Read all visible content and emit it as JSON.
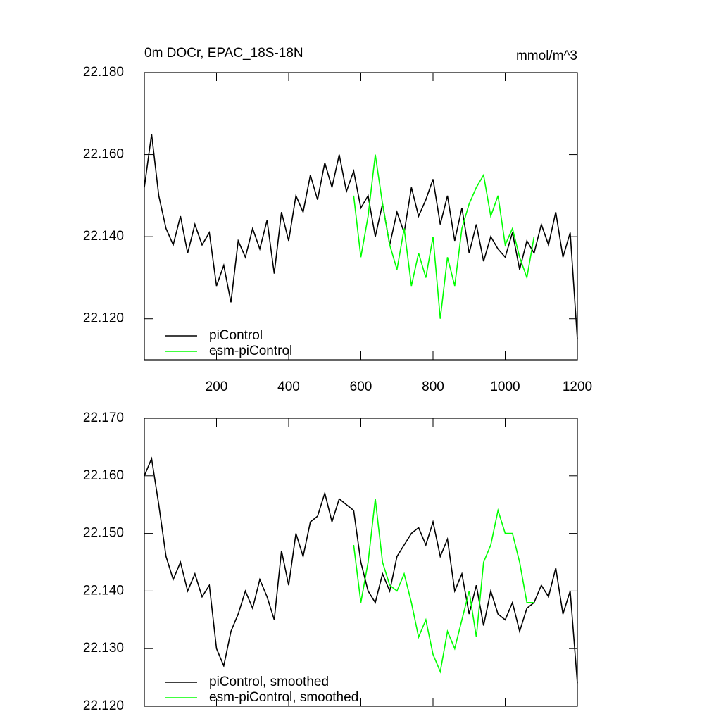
{
  "chart_data": [
    {
      "type": "line",
      "title": "0m DOCr, EPAC_18S-18N",
      "y_units": "mmol/m^3",
      "xlim": [
        0,
        1200
      ],
      "xticks": [
        200,
        400,
        600,
        800,
        1000,
        1200
      ],
      "xtick_labels": true,
      "ylim": [
        22.11,
        22.18
      ],
      "yticks": [
        {
          "value": 22.18,
          "label": "22.180"
        },
        {
          "value": 22.16,
          "label": "22.160"
        },
        {
          "value": 22.14,
          "label": "22.140"
        },
        {
          "value": 22.12,
          "label": "22.120"
        }
      ],
      "legend_loc": "lower left",
      "series": [
        {
          "name": "piControl",
          "color": "#000000",
          "x": [
            0,
            20,
            40,
            60,
            80,
            100,
            120,
            140,
            160,
            180,
            200,
            220,
            240,
            260,
            280,
            300,
            320,
            340,
            360,
            380,
            400,
            420,
            440,
            460,
            480,
            500,
            520,
            540,
            560,
            580,
            600,
            620,
            640,
            660,
            680,
            700,
            720,
            740,
            760,
            780,
            800,
            820,
            840,
            860,
            880,
            900,
            920,
            940,
            960,
            980,
            1000,
            1020,
            1040,
            1060,
            1080,
            1100,
            1120,
            1140,
            1160,
            1180,
            1200
          ],
          "values": [
            22.152,
            22.165,
            22.15,
            22.142,
            22.138,
            22.145,
            22.136,
            22.143,
            22.138,
            22.141,
            22.128,
            22.133,
            22.124,
            22.139,
            22.135,
            22.142,
            22.137,
            22.144,
            22.131,
            22.146,
            22.139,
            22.15,
            22.146,
            22.155,
            22.149,
            22.158,
            22.152,
            22.16,
            22.151,
            22.156,
            22.147,
            22.15,
            22.14,
            22.148,
            22.138,
            22.146,
            22.141,
            22.152,
            22.145,
            22.149,
            22.154,
            22.143,
            22.15,
            22.139,
            22.147,
            22.136,
            22.143,
            22.134,
            22.14,
            22.137,
            22.135,
            22.141,
            22.132,
            22.139,
            22.136,
            22.143,
            22.138,
            22.146,
            22.135,
            22.141,
            22.115
          ]
        },
        {
          "name": "esm-piControl",
          "color": "#00ff00",
          "x": [
            580,
            600,
            620,
            640,
            660,
            680,
            700,
            720,
            740,
            760,
            780,
            800,
            820,
            840,
            860,
            880,
            900,
            920,
            940,
            960,
            980,
            1000,
            1020,
            1040,
            1060,
            1080
          ],
          "values": [
            22.15,
            22.135,
            22.145,
            22.16,
            22.148,
            22.138,
            22.132,
            22.142,
            22.128,
            22.136,
            22.13,
            22.14,
            22.12,
            22.135,
            22.128,
            22.142,
            22.148,
            22.152,
            22.155,
            22.145,
            22.15,
            22.138,
            22.142,
            22.135,
            22.13,
            22.14
          ]
        }
      ]
    },
    {
      "type": "line",
      "xlim": [
        0,
        1200
      ],
      "xticks": [
        200,
        400,
        600,
        800,
        1000,
        1200
      ],
      "xtick_labels": false,
      "ylim": [
        22.12,
        22.17
      ],
      "yticks": [
        {
          "value": 22.17,
          "label": "22.170"
        },
        {
          "value": 22.16,
          "label": "22.160"
        },
        {
          "value": 22.15,
          "label": "22.150"
        },
        {
          "value": 22.14,
          "label": "22.140"
        },
        {
          "value": 22.13,
          "label": "22.130"
        },
        {
          "value": 22.12,
          "label": "22.120"
        }
      ],
      "legend_loc": "lower left",
      "series": [
        {
          "name": "piControl, smoothed",
          "color": "#000000",
          "x": [
            0,
            20,
            40,
            60,
            80,
            100,
            120,
            140,
            160,
            180,
            200,
            220,
            240,
            260,
            280,
            300,
            320,
            340,
            360,
            380,
            400,
            420,
            440,
            460,
            480,
            500,
            520,
            540,
            560,
            580,
            600,
            620,
            640,
            660,
            680,
            700,
            720,
            740,
            760,
            780,
            800,
            820,
            840,
            860,
            880,
            900,
            920,
            940,
            960,
            980,
            1000,
            1020,
            1040,
            1060,
            1080,
            1100,
            1120,
            1140,
            1160,
            1180,
            1200
          ],
          "values": [
            22.16,
            22.163,
            22.155,
            22.146,
            22.142,
            22.145,
            22.14,
            22.143,
            22.139,
            22.141,
            22.13,
            22.127,
            22.133,
            22.136,
            22.14,
            22.137,
            22.142,
            22.139,
            22.135,
            22.147,
            22.141,
            22.15,
            22.146,
            22.152,
            22.153,
            22.157,
            22.152,
            22.156,
            22.155,
            22.154,
            22.145,
            22.14,
            22.138,
            22.143,
            22.14,
            22.146,
            22.148,
            22.15,
            22.151,
            22.148,
            22.152,
            22.146,
            22.149,
            22.14,
            22.143,
            22.136,
            22.141,
            22.134,
            22.14,
            22.136,
            22.135,
            22.138,
            22.133,
            22.137,
            22.138,
            22.141,
            22.139,
            22.144,
            22.136,
            22.14,
            22.124
          ]
        },
        {
          "name": "esm-piControl, smoothed",
          "color": "#00ff00",
          "x": [
            580,
            600,
            620,
            640,
            660,
            680,
            700,
            720,
            740,
            760,
            780,
            800,
            820,
            840,
            860,
            880,
            900,
            920,
            940,
            960,
            980,
            1000,
            1020,
            1040,
            1060,
            1080
          ],
          "values": [
            22.148,
            22.138,
            22.145,
            22.156,
            22.145,
            22.141,
            22.14,
            22.143,
            22.138,
            22.132,
            22.135,
            22.129,
            22.126,
            22.133,
            22.13,
            22.135,
            22.14,
            22.132,
            22.145,
            22.148,
            22.154,
            22.15,
            22.15,
            22.145,
            22.138,
            22.138
          ]
        }
      ]
    }
  ]
}
